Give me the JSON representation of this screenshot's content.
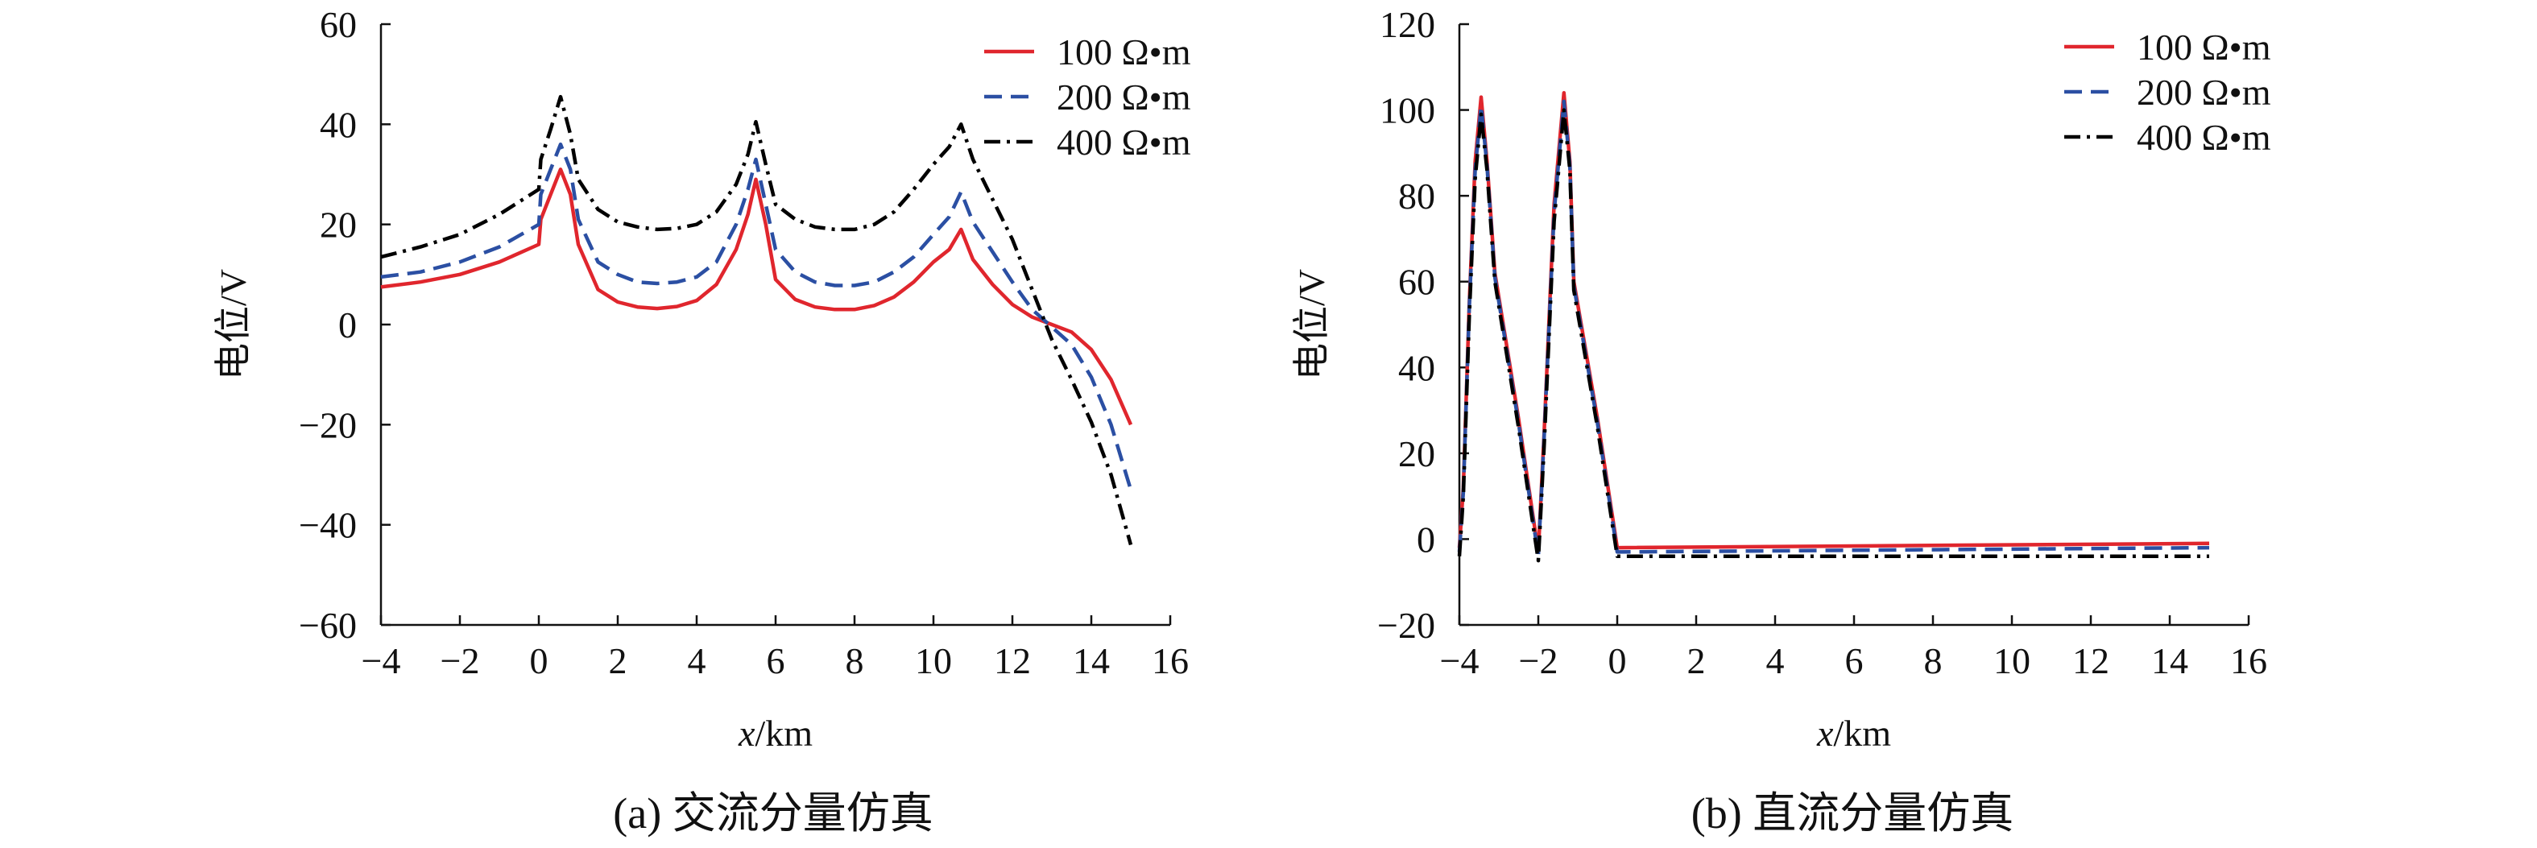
{
  "chart_data": [
    {
      "type": "line",
      "caption": "(a) 交流分量仿真",
      "xlabel_var": "x",
      "xlabel_unit": "/km",
      "ylabel": "电位/V",
      "xlim": [
        -4,
        16
      ],
      "ylim": [
        -60,
        60
      ],
      "xticks": [
        -4,
        -2,
        0,
        2,
        4,
        6,
        8,
        10,
        12,
        14,
        16
      ],
      "yticks": [
        -60,
        -40,
        -20,
        0,
        20,
        40,
        60
      ],
      "legend_position": "top-right",
      "series": [
        {
          "name": "100 Ω•m",
          "color": "#e0262d",
          "style": "solid",
          "points": [
            [
              -4,
              7.5
            ],
            [
              -3,
              8.5
            ],
            [
              -2,
              10
            ],
            [
              -1,
              12.5
            ],
            [
              0,
              16
            ],
            [
              0.05,
              21
            ],
            [
              0.3,
              26
            ],
            [
              0.55,
              31
            ],
            [
              0.8,
              26
            ],
            [
              1,
              16
            ],
            [
              1.5,
              7
            ],
            [
              2,
              4.5
            ],
            [
              2.5,
              3.5
            ],
            [
              3,
              3.2
            ],
            [
              3.5,
              3.6
            ],
            [
              4,
              4.8
            ],
            [
              4.5,
              8
            ],
            [
              5,
              15
            ],
            [
              5.3,
              22
            ],
            [
              5.5,
              29
            ],
            [
              5.75,
              20
            ],
            [
              6,
              9
            ],
            [
              6.5,
              5
            ],
            [
              7,
              3.5
            ],
            [
              7.5,
              3
            ],
            [
              8,
              3
            ],
            [
              8.5,
              3.8
            ],
            [
              9,
              5.5
            ],
            [
              9.5,
              8.5
            ],
            [
              10,
              12.5
            ],
            [
              10.4,
              15
            ],
            [
              10.7,
              19
            ],
            [
              11,
              13
            ],
            [
              11.5,
              8
            ],
            [
              12,
              4
            ],
            [
              12.5,
              1.5
            ],
            [
              13,
              0
            ],
            [
              13.5,
              -1.5
            ],
            [
              14,
              -5
            ],
            [
              14.5,
              -11
            ],
            [
              15,
              -20
            ]
          ]
        },
        {
          "name": "200 Ω•m",
          "color": "#2b4fa3",
          "style": "dashed",
          "points": [
            [
              -4,
              9.5
            ],
            [
              -3,
              10.5
            ],
            [
              -2,
              12.5
            ],
            [
              -1,
              15.5
            ],
            [
              0,
              20
            ],
            [
              0.05,
              26
            ],
            [
              0.3,
              31
            ],
            [
              0.55,
              36
            ],
            [
              0.8,
              31
            ],
            [
              1,
              21
            ],
            [
              1.5,
              12.5
            ],
            [
              2,
              10
            ],
            [
              2.5,
              8.5
            ],
            [
              3,
              8.2
            ],
            [
              3.5,
              8.5
            ],
            [
              4,
              9.5
            ],
            [
              4.5,
              12.5
            ],
            [
              5,
              20
            ],
            [
              5.3,
              27
            ],
            [
              5.5,
              33
            ],
            [
              5.75,
              24
            ],
            [
              6,
              15
            ],
            [
              6.5,
              10.5
            ],
            [
              7,
              8.5
            ],
            [
              7.5,
              7.8
            ],
            [
              8,
              7.8
            ],
            [
              8.5,
              8.5
            ],
            [
              9,
              10.5
            ],
            [
              9.5,
              13.5
            ],
            [
              10,
              18
            ],
            [
              10.4,
              21.5
            ],
            [
              10.7,
              26.5
            ],
            [
              11,
              20.5
            ],
            [
              11.5,
              14.5
            ],
            [
              12,
              8.5
            ],
            [
              12.5,
              3
            ],
            [
              13,
              -0.5
            ],
            [
              13.5,
              -4
            ],
            [
              14,
              -10.5
            ],
            [
              14.5,
              -20
            ],
            [
              15,
              -33
            ]
          ]
        },
        {
          "name": "400 Ω•m",
          "color": "#000000",
          "style": "dashdot",
          "points": [
            [
              -4,
              13.5
            ],
            [
              -3,
              15.5
            ],
            [
              -2,
              18
            ],
            [
              -1,
              22
            ],
            [
              0,
              27
            ],
            [
              0.05,
              33
            ],
            [
              0.3,
              39
            ],
            [
              0.55,
              45.5
            ],
            [
              0.8,
              38
            ],
            [
              1,
              29
            ],
            [
              1.5,
              23
            ],
            [
              2,
              20.5
            ],
            [
              2.5,
              19.5
            ],
            [
              3,
              19
            ],
            [
              3.5,
              19.2
            ],
            [
              4,
              20
            ],
            [
              4.5,
              22.5
            ],
            [
              5,
              28
            ],
            [
              5.3,
              34
            ],
            [
              5.5,
              40.5
            ],
            [
              5.75,
              32
            ],
            [
              6,
              24
            ],
            [
              6.5,
              21
            ],
            [
              7,
              19.5
            ],
            [
              7.5,
              19
            ],
            [
              8,
              19
            ],
            [
              8.5,
              20
            ],
            [
              9,
              22.5
            ],
            [
              9.5,
              27
            ],
            [
              10,
              32
            ],
            [
              10.4,
              35.5
            ],
            [
              10.7,
              40
            ],
            [
              11,
              33
            ],
            [
              11.5,
              25
            ],
            [
              12,
              17
            ],
            [
              12.5,
              7
            ],
            [
              13,
              -3
            ],
            [
              13.5,
              -11
            ],
            [
              14,
              -19.5
            ],
            [
              14.5,
              -30
            ],
            [
              15,
              -44
            ]
          ]
        }
      ]
    },
    {
      "type": "line",
      "caption": "(b) 直流分量仿真",
      "xlabel_var": "x",
      "xlabel_unit": "/km",
      "ylabel": "电位/V",
      "xlim": [
        -4,
        16
      ],
      "ylim": [
        -20,
        120
      ],
      "xticks": [
        -4,
        -2,
        0,
        2,
        4,
        6,
        8,
        10,
        12,
        14,
        16
      ],
      "yticks": [
        -20,
        0,
        20,
        40,
        60,
        80,
        100,
        120
      ],
      "legend_position": "top-right",
      "series": [
        {
          "name": "100 Ω•m",
          "color": "#e0262d",
          "style": "solid",
          "points": [
            [
              -4,
              -2
            ],
            [
              -3.9,
              12
            ],
            [
              -3.75,
              55
            ],
            [
              -3.6,
              88
            ],
            [
              -3.45,
              103
            ],
            [
              -3.3,
              88
            ],
            [
              -3.1,
              62
            ],
            [
              -2.5,
              28
            ],
            [
              -2,
              -3
            ],
            [
              -1.85,
              25
            ],
            [
              -1.6,
              78
            ],
            [
              -1.35,
              104
            ],
            [
              -1.2,
              88
            ],
            [
              -1.1,
              60
            ],
            [
              -0.5,
              28
            ],
            [
              0,
              -2
            ],
            [
              15,
              -1
            ]
          ]
        },
        {
          "name": "200 Ω•m",
          "color": "#2b4fa3",
          "style": "dashed",
          "points": [
            [
              -4,
              -3
            ],
            [
              -3.9,
              11
            ],
            [
              -3.75,
              54
            ],
            [
              -3.6,
              86
            ],
            [
              -3.45,
              101
            ],
            [
              -3.3,
              87
            ],
            [
              -3.1,
              61
            ],
            [
              -2.5,
              27
            ],
            [
              -2,
              -4
            ],
            [
              -1.85,
              24
            ],
            [
              -1.6,
              76
            ],
            [
              -1.35,
              102
            ],
            [
              -1.2,
              87
            ],
            [
              -1.1,
              59
            ],
            [
              -0.5,
              27
            ],
            [
              0,
              -3
            ],
            [
              15,
              -2
            ]
          ]
        },
        {
          "name": "400 Ω•m",
          "color": "#000000",
          "style": "dashdot",
          "points": [
            [
              -4,
              -4
            ],
            [
              -3.9,
              10
            ],
            [
              -3.75,
              52
            ],
            [
              -3.6,
              84
            ],
            [
              -3.45,
              99
            ],
            [
              -3.3,
              86
            ],
            [
              -3.1,
              60
            ],
            [
              -2.5,
              26
            ],
            [
              -2,
              -5
            ],
            [
              -1.85,
              22
            ],
            [
              -1.6,
              74
            ],
            [
              -1.35,
              100
            ],
            [
              -1.2,
              86
            ],
            [
              -1.1,
              58
            ],
            [
              -0.5,
              26
            ],
            [
              0,
              -4
            ],
            [
              15,
              -4
            ]
          ]
        }
      ]
    }
  ]
}
